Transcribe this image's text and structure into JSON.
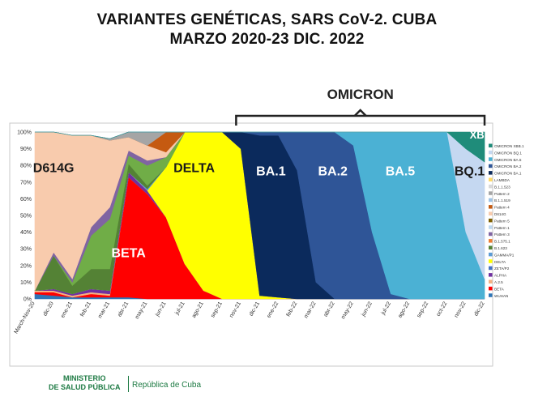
{
  "slide": {
    "title_line1": "VARIANTES GENÉTICAS, SARS CoV-2. CUBA",
    "title_line2": "MARZO 2020-23 DIC. 2022",
    "omicron_label": "OMICRON",
    "footer_ministry_line1": "MINISTERIO",
    "footer_ministry_line2": "DE SALUD PÚBLICA",
    "footer_republic": "República de Cuba"
  },
  "chart_data": {
    "type": "area",
    "stacked": true,
    "percent": true,
    "ylim": [
      0,
      100
    ],
    "y_ticks": [
      "0%",
      "10%",
      "20%",
      "30%",
      "40%",
      "50%",
      "60%",
      "70%",
      "80%",
      "90%",
      "100%"
    ],
    "categories": [
      "March-Nov-20",
      "dic-20",
      "ene-21",
      "feb-21",
      "mar-21",
      "abr-21",
      "may-21",
      "jun-21",
      "jul-21",
      "ago-21",
      "sep-21",
      "nov-21",
      "dic-21",
      "ene-22",
      "feb-22",
      "mar-22",
      "abr-22",
      "may-22",
      "jun-22",
      "jul-22",
      "ago-22",
      "sep-22",
      "oct-22",
      "nov-22",
      "dic-22"
    ],
    "series": [
      {
        "name": "WUHAN",
        "color": "#2e75b6",
        "values": [
          3,
          2,
          1,
          1,
          1,
          1,
          0,
          0,
          0,
          0,
          0,
          0,
          0,
          0,
          0,
          0,
          0,
          0,
          0,
          0,
          0,
          0,
          0,
          0,
          0
        ]
      },
      {
        "name": "BETA",
        "color": "#ff0000",
        "values": [
          1,
          2,
          0,
          2,
          1,
          72,
          63,
          49,
          21,
          5,
          0,
          0,
          0,
          0,
          0,
          0,
          0,
          0,
          0,
          0,
          0,
          0,
          0,
          0,
          0
        ]
      },
      {
        "name": "A.2.5",
        "color": "#f4b183",
        "values": [
          1,
          1,
          1,
          1,
          1,
          0,
          0,
          0,
          0,
          0,
          0,
          0,
          0,
          0,
          0,
          0,
          0,
          0,
          0,
          0,
          0,
          0,
          0,
          0,
          0
        ]
      },
      {
        "name": "ALPHA",
        "color": "#7030a0",
        "values": [
          0,
          1,
          1,
          2,
          2,
          3,
          2,
          0,
          0,
          0,
          0,
          0,
          0,
          0,
          0,
          0,
          0,
          0,
          0,
          0,
          0,
          0,
          0,
          0,
          0
        ]
      },
      {
        "name": "DELTA",
        "color": "#ffff00",
        "values": [
          0,
          0,
          0,
          0,
          0,
          0,
          0,
          30,
          79,
          95,
          100,
          90,
          2,
          1,
          0,
          0,
          0,
          0,
          0,
          0,
          0,
          0,
          0,
          0,
          0
        ]
      },
      {
        "name": "GAMMA/P1",
        "color": "#5b9bd5",
        "values": [
          0,
          0,
          0,
          0,
          0,
          0,
          1,
          0,
          0,
          0,
          0,
          0,
          0,
          0,
          0,
          0,
          0,
          0,
          0,
          0,
          0,
          0,
          0,
          0,
          0
        ]
      },
      {
        "name": "B.1.623",
        "color": "#548235",
        "values": [
          0,
          20,
          5,
          12,
          13,
          5,
          2,
          0,
          0,
          0,
          0,
          0,
          0,
          0,
          0,
          0,
          0,
          0,
          0,
          0,
          0,
          0,
          0,
          0,
          0
        ]
      },
      {
        "name": "Beta",
        "color": "#70ad47",
        "values": [
          0,
          0,
          2,
          20,
          30,
          5,
          12,
          6,
          0,
          0,
          0,
          0,
          0,
          0,
          0,
          0,
          0,
          0,
          0,
          0,
          0,
          0,
          0,
          0,
          0
        ]
      },
      {
        "name": "Pattern 3",
        "color": "#8064a2",
        "values": [
          0,
          2,
          2,
          5,
          7,
          3,
          3,
          0,
          0,
          0,
          0,
          0,
          0,
          0,
          0,
          0,
          0,
          0,
          0,
          0,
          0,
          0,
          0,
          0,
          0
        ]
      },
      {
        "name": "D614G",
        "color": "#f8cbad",
        "values": [
          95,
          72,
          86,
          55,
          40,
          8,
          9,
          3,
          0,
          0,
          0,
          0,
          0,
          0,
          0,
          0,
          0,
          0,
          0,
          0,
          0,
          0,
          0,
          0,
          0
        ]
      },
      {
        "name": "Pattern 4",
        "color": "#c55a11",
        "values": [
          0,
          0,
          0,
          0,
          0,
          0,
          0,
          12,
          0,
          0,
          0,
          0,
          0,
          0,
          0,
          0,
          0,
          0,
          0,
          0,
          0,
          0,
          0,
          0,
          0
        ]
      },
      {
        "name": "Pattern 2",
        "color": "#a5a5a5",
        "values": [
          0,
          0,
          0,
          0,
          1,
          3,
          8,
          0,
          0,
          0,
          0,
          0,
          0,
          0,
          0,
          0,
          0,
          0,
          0,
          0,
          0,
          0,
          0,
          0,
          0
        ]
      },
      {
        "name": "OMICRON BA.1",
        "color": "#0b2a5c",
        "values": [
          0,
          0,
          0,
          0,
          0,
          0,
          0,
          0,
          0,
          0,
          0,
          10,
          96,
          97,
          77,
          10,
          0,
          0,
          0,
          0,
          0,
          0,
          0,
          0,
          0
        ]
      },
      {
        "name": "OMICRON BA.2",
        "color": "#2f5597",
        "values": [
          0,
          0,
          0,
          0,
          0,
          0,
          0,
          0,
          0,
          0,
          0,
          0,
          2,
          2,
          23,
          90,
          100,
          92,
          40,
          3,
          0,
          0,
          0,
          0,
          0
        ]
      },
      {
        "name": "OMICRON BA.5",
        "color": "#4bb1d4",
        "values": [
          0,
          0,
          0,
          0,
          0,
          0,
          0,
          0,
          0,
          0,
          0,
          0,
          0,
          0,
          0,
          0,
          0,
          8,
          60,
          97,
          100,
          100,
          100,
          40,
          12
        ]
      },
      {
        "name": "OMICRON BQ.1",
        "color": "#c5d8f1",
        "values": [
          0,
          0,
          0,
          0,
          0,
          0,
          0,
          0,
          0,
          0,
          0,
          0,
          0,
          0,
          0,
          0,
          0,
          0,
          0,
          0,
          0,
          0,
          0,
          50,
          70
        ]
      },
      {
        "name": "OMICRON XBB.1",
        "color": "#1f8c7a",
        "values": [
          0,
          0,
          0,
          0,
          0,
          0,
          0,
          0,
          0,
          0,
          0,
          0,
          0,
          0,
          0,
          0,
          0,
          0,
          0,
          0,
          0,
          0,
          0,
          10,
          18
        ]
      }
    ],
    "legend": [
      "OMICRON XBB.1",
      "OMICRON BQ.1",
      "OMICRON BA.5",
      "OMICRON BA.2",
      "OMICRON BA.1",
      "LAMBDA",
      "B.1.1.523",
      "Pattern 2",
      "B.1.1.519",
      "Pattern 4",
      "D614G",
      "Pattern 5",
      "Pattern 1",
      "Pattern 3",
      "B.1.575.1",
      "B.1.623",
      "GAMMA/P1",
      "DELTA",
      "ZETA/P2",
      "ALPHA",
      "A.2.5",
      "BETA",
      "WUHAN"
    ],
    "legend_colors": [
      "#1f8c7a",
      "#c5d8f1",
      "#4bb1d4",
      "#2f5597",
      "#0b2a5c",
      "#ffd966",
      "#d9d9d9",
      "#a5a5a5",
      "#9dc3e6",
      "#c55a11",
      "#f8cbad",
      "#7f6000",
      "#bdd7ee",
      "#8064a2",
      "#ed7d31",
      "#548235",
      "#5b9bd5",
      "#ffff00",
      "#4472c4",
      "#7030a0",
      "#f4b183",
      "#ff0000",
      "#2e75b6"
    ],
    "legend_position": "right",
    "annotations": [
      {
        "text": "D614G",
        "x": 1,
        "y": 76
      },
      {
        "text": "BETA",
        "x": 5,
        "y": 25
      },
      {
        "text": "DELTA",
        "x": 8.5,
        "y": 76
      },
      {
        "text": "BA.1",
        "x": 12.6,
        "y": 74
      },
      {
        "text": "BA.2",
        "x": 15.9,
        "y": 74
      },
      {
        "text": "BA.5",
        "x": 19.5,
        "y": 74
      },
      {
        "text": "BQ.1",
        "x": 23.2,
        "y": 74
      },
      {
        "text": "XBB",
        "x": 23.8,
        "y": 96
      }
    ]
  }
}
